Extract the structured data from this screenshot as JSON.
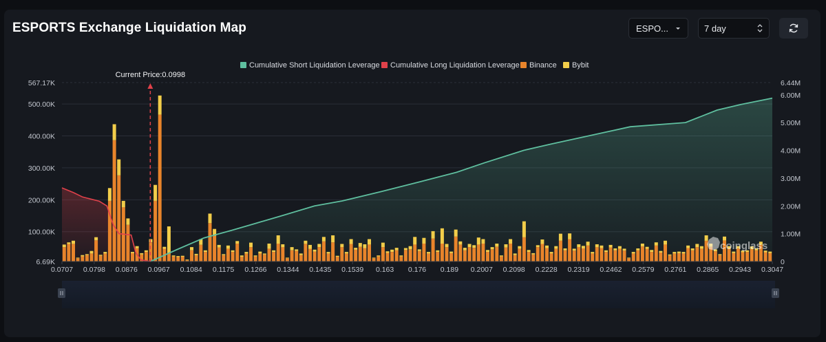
{
  "header": {
    "title": "ESPORTS Exchange Liquidation Map",
    "symbol_value": "ESPO...",
    "period_value": "7 day",
    "refresh_icon": "refresh-icon"
  },
  "colors": {
    "short": "#5fbf9f",
    "long": "#e0414a",
    "binance": "#e8842b",
    "bybit": "#f2cd4a"
  },
  "watermark": "coinglass",
  "chart_data": {
    "type": "bar",
    "legend": [
      {
        "label": "Cumulative Short Liquidation Leverage",
        "color": "#5fbf9f"
      },
      {
        "label": "Cumulative Long Liquidation Leverage",
        "color": "#e0414a"
      },
      {
        "label": "Binance",
        "color": "#e8842b"
      },
      {
        "label": "Bybit",
        "color": "#f2cd4a"
      }
    ],
    "current_price_label": "Current Price:0.0998",
    "current_price": 0.0998,
    "x_range": [
      0.0707,
      0.3047
    ],
    "x_ticks": [
      "0.0707",
      "0.0798",
      "0.0876",
      "0.0967",
      "0.1084",
      "0.1175",
      "0.1266",
      "0.1344",
      "0.1435",
      "0.1539",
      "0.163",
      "0.176",
      "0.189",
      "0.2007",
      "0.2098",
      "0.2228",
      "0.2319",
      "0.2462",
      "0.2579",
      "0.2761",
      "0.2865",
      "0.2943",
      "0.3047"
    ],
    "y_left_ticks": [
      "567.17K",
      "500.00K",
      "400.00K",
      "300.00K",
      "200.00K",
      "100.00K",
      "6.69K"
    ],
    "y_left_range": [
      6690,
      567170
    ],
    "y_right_ticks": [
      "6.44M",
      "6.00M",
      "5.00M",
      "4.00M",
      "3.00M",
      "2.00M",
      "1.00M",
      "0"
    ],
    "y_right_range": [
      0,
      6440000
    ],
    "grid": true,
    "binance": [
      45000,
      55000,
      55000,
      10000,
      16000,
      20000,
      25000,
      66000,
      18000,
      25000,
      190000,
      380000,
      270000,
      170000,
      115000,
      26000,
      41000,
      22000,
      30000,
      60000,
      190000,
      460000,
      40000,
      25000,
      16000,
      14000,
      15000,
      4000,
      35000,
      20000,
      52000,
      30000,
      120000,
      80000,
      44000,
      20000,
      40000,
      30000,
      56000,
      15000,
      25000,
      45000,
      16000,
      25000,
      22000,
      40000,
      30000,
      56000,
      45000,
      10000,
      35000,
      33000,
      20000,
      55000,
      40000,
      31000,
      45000,
      63000,
      25000,
      60000,
      15000,
      45000,
      25000,
      55000,
      37000,
      46000,
      42000,
      53000,
      10000,
      16000,
      45000,
      27000,
      30000,
      35000,
      16000,
      36000,
      38000,
      53000,
      33000,
      56000,
      25000,
      72000,
      30000,
      56000,
      45000,
      26000,
      78000,
      53000,
      35000,
      45000,
      43000,
      53000,
      56000,
      30000,
      38000,
      46000,
      16000,
      44000,
      56000,
      20000,
      40000,
      76000,
      30000,
      22000,
      45000,
      55000,
      42000,
      25000,
      40000,
      65000,
      35000,
      70000,
      34000,
      45000,
      41000,
      50000,
      25000,
      45000,
      42000,
      30000,
      44000,
      35000,
      40000,
      34000,
      10000,
      25000,
      35000,
      47000,
      40000,
      30000,
      50000,
      28000,
      53000,
      19000,
      25000,
      26000,
      25000,
      42000,
      35000,
      45000,
      40000,
      65000,
      46000,
      32000,
      20000,
      66000,
      40000,
      26000,
      41000,
      29000,
      30000,
      39000,
      35000,
      52000,
      29000,
      26000
    ],
    "bybit": [
      8000,
      5000,
      10000,
      2000,
      4000,
      3000,
      8000,
      10000,
      3000,
      5000,
      40000,
      50000,
      50000,
      20000,
      20000,
      4000,
      7000,
      4000,
      5000,
      10000,
      50000,
      60000,
      6000,
      85000,
      3000,
      3000,
      3000,
      2000,
      10000,
      4000,
      18000,
      5000,
      30000,
      22000,
      8000,
      3000,
      10000,
      5000,
      8000,
      4000,
      5000,
      14000,
      3000,
      6000,
      3000,
      16000,
      5000,
      26000,
      9000,
      2000,
      10000,
      5000,
      5000,
      10000,
      12000,
      6000,
      10000,
      14000,
      5000,
      22000,
      3000,
      10000,
      5000,
      15000,
      6000,
      12000,
      12000,
      17000,
      2000,
      3000,
      14000,
      5000,
      7000,
      8000,
      3000,
      6000,
      10000,
      24000,
      5000,
      18000,
      5000,
      23000,
      5000,
      48000,
      10000,
      5000,
      22000,
      10000,
      8000,
      10000,
      8000,
      22000,
      14000,
      6000,
      7000,
      10000,
      3000,
      10000,
      14000,
      5000,
      8000,
      50000,
      6000,
      4000,
      6000,
      14000,
      8000,
      5000,
      8000,
      22000,
      6000,
      18000,
      6000,
      9000,
      8000,
      12000,
      5000,
      9000,
      8000,
      5000,
      8000,
      6000,
      8000,
      6000,
      2000,
      5000,
      6000,
      9000,
      6000,
      6000,
      10000,
      5000,
      12000,
      3000,
      5000,
      5000,
      5000,
      8000,
      6000,
      10000,
      8000,
      17000,
      10000,
      6000,
      3000,
      12000,
      8000,
      5000,
      7000,
      5000,
      5000,
      8000,
      6000,
      10000,
      5000,
      5000
    ],
    "short_cumulative": {
      "x": [
        0.0998,
        0.1084,
        0.1175,
        0.1266,
        0.1344,
        0.1435,
        0.1539,
        0.163,
        0.176,
        0.189,
        0.2007,
        0.2098,
        0.2228,
        0.2319,
        0.2462,
        0.2579,
        0.2761,
        0.2865,
        0.2943,
        0.3047
      ],
      "y": [
        0,
        420000,
        850000,
        1120000,
        1370000,
        1660000,
        2000000,
        2180000,
        2520000,
        2880000,
        3210000,
        3550000,
        4000000,
        4230000,
        4570000,
        4850000,
        5000000,
        5450000,
        5650000,
        5880000
      ]
    },
    "long_cumulative": {
      "x": [
        0.0707,
        0.0745,
        0.0775,
        0.0798,
        0.083,
        0.0855,
        0.0876,
        0.0895,
        0.0915,
        0.0935,
        0.095,
        0.0967,
        0.0998
      ],
      "y": [
        2650000,
        2480000,
        2320000,
        2260000,
        2170000,
        2000000,
        1320000,
        1000000,
        980000,
        950000,
        320000,
        60000,
        0
      ]
    }
  }
}
